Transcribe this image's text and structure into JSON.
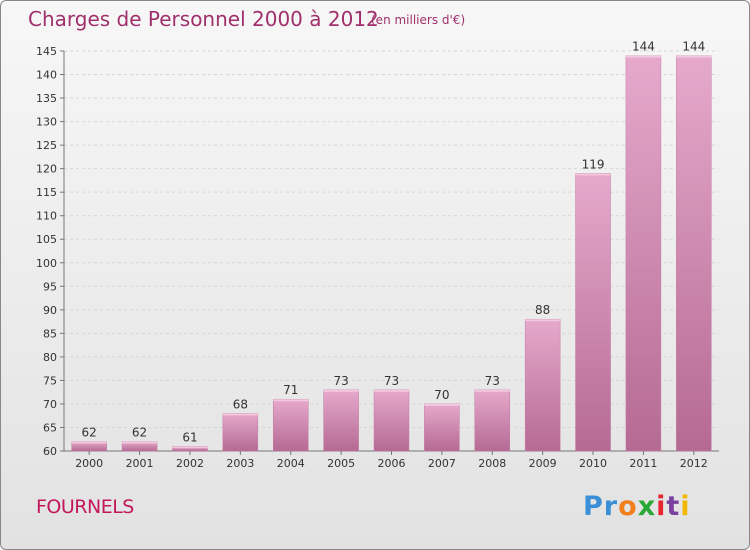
{
  "header": {
    "title": "Charges de Personnel 2000 à 2012",
    "subtitle": "(en milliers d'€)"
  },
  "footer": {
    "commune": "FOURNELS",
    "logo_letters": [
      "P",
      "r",
      "o",
      "x",
      "i",
      "t",
      "i"
    ],
    "logo_colors": [
      "#3a8fd6",
      "#3a8fd6",
      "#f07f1d",
      "#2aa836",
      "#e6262e",
      "#7b3fa0",
      "#f2b705"
    ]
  },
  "colors": {
    "bar": "#d98fb8",
    "text": "#a0306b",
    "accent": "#c2185b"
  },
  "chart_data": {
    "type": "bar",
    "title": "Charges de Personnel 2000 à 2012",
    "subtitle": "(en milliers d'€)",
    "categories": [
      "2000",
      "2001",
      "2002",
      "2003",
      "2004",
      "2005",
      "2006",
      "2007",
      "2008",
      "2009",
      "2010",
      "2011",
      "2012"
    ],
    "values": [
      62,
      62,
      61,
      68,
      71,
      73,
      73,
      70,
      73,
      88,
      119,
      144,
      144
    ],
    "ylim": [
      60,
      145
    ],
    "yticks": [
      60,
      65,
      70,
      75,
      80,
      85,
      90,
      95,
      100,
      105,
      110,
      115,
      120,
      125,
      130,
      135,
      140,
      145
    ],
    "grid": true
  }
}
